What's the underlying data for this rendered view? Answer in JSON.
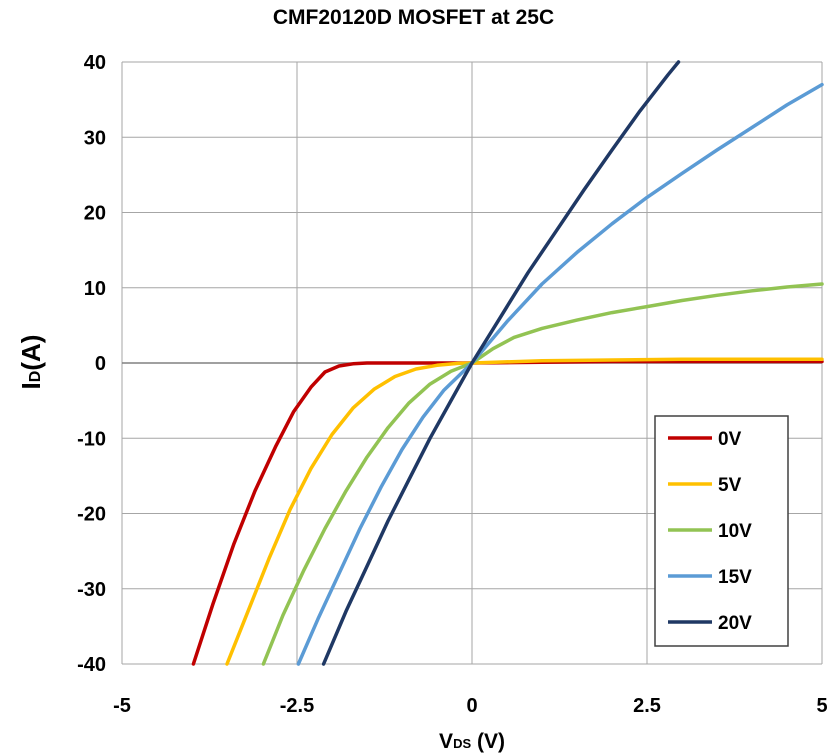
{
  "chart_data": {
    "type": "line",
    "title": "CMF20120D MOSFET at 25C",
    "xlabel": {
      "main": "V",
      "sub": "DS",
      "unit": " (V)"
    },
    "ylabel": {
      "main": "I",
      "sub": "D",
      "unit": "(A)"
    },
    "xlim": [
      -5,
      5
    ],
    "ylim": [
      -40,
      40
    ],
    "xticks": [
      -5,
      -2.5,
      0,
      2.5,
      5
    ],
    "xtick_labels": [
      "-5",
      "-2.5",
      "0",
      "2.5",
      "5"
    ],
    "yticks": [
      40,
      30,
      20,
      10,
      0,
      -10,
      -20,
      -30,
      -40
    ],
    "ytick_labels": [
      "40",
      "30",
      "20",
      "10",
      "0",
      "-10",
      "-20",
      "-30",
      "-40"
    ],
    "grid": true,
    "legend_position": "bottom-right",
    "series": [
      {
        "name": "0V",
        "color": "#c00000",
        "x": [
          -3.98,
          -3.7,
          -3.4,
          -3.1,
          -2.8,
          -2.55,
          -2.3,
          -2.1,
          -1.9,
          -1.7,
          -1.5,
          -1.0,
          -0.5,
          0,
          1,
          2,
          3,
          4,
          5
        ],
        "y": [
          -40,
          -32,
          -24,
          -17,
          -11,
          -6.5,
          -3.2,
          -1.2,
          -0.4,
          -0.1,
          0,
          0,
          0,
          0,
          0.1,
          0.2,
          0.2,
          0.2,
          0.2
        ]
      },
      {
        "name": "5V",
        "color": "#ffc000",
        "x": [
          -3.5,
          -3.2,
          -2.9,
          -2.6,
          -2.3,
          -2.0,
          -1.7,
          -1.4,
          -1.1,
          -0.8,
          -0.5,
          -0.2,
          0,
          1,
          2,
          3,
          4,
          5
        ],
        "y": [
          -40,
          -33,
          -26,
          -19.5,
          -14,
          -9.5,
          -6,
          -3.5,
          -1.8,
          -0.8,
          -0.3,
          -0.05,
          0,
          0.3,
          0.4,
          0.5,
          0.5,
          0.5
        ]
      },
      {
        "name": "10V",
        "color": "#92c353",
        "x": [
          -2.98,
          -2.7,
          -2.4,
          -2.1,
          -1.8,
          -1.5,
          -1.2,
          -0.9,
          -0.6,
          -0.3,
          0,
          0.3,
          0.6,
          1.0,
          1.5,
          2.0,
          2.5,
          3.0,
          3.5,
          4.0,
          4.5,
          5.0
        ],
        "y": [
          -40,
          -33.5,
          -27.5,
          -22,
          -17,
          -12.5,
          -8.6,
          -5.3,
          -2.8,
          -1.1,
          0,
          1.9,
          3.4,
          4.6,
          5.7,
          6.7,
          7.5,
          8.3,
          9.0,
          9.6,
          10.1,
          10.5
        ]
      },
      {
        "name": "15V",
        "color": "#5b9bd5",
        "x": [
          -2.48,
          -2.2,
          -1.9,
          -1.6,
          -1.3,
          -1.0,
          -0.7,
          -0.4,
          0,
          0.5,
          1.0,
          1.5,
          2.0,
          2.5,
          3.0,
          3.5,
          4.0,
          4.5,
          5.0
        ],
        "y": [
          -40,
          -34,
          -28,
          -22,
          -16.5,
          -11.5,
          -7.2,
          -3.6,
          0,
          5.5,
          10.5,
          14.7,
          18.5,
          22.0,
          25.2,
          28.3,
          31.3,
          34.3,
          37.0
        ]
      },
      {
        "name": "20V",
        "color": "#1f3864",
        "x": [
          -2.12,
          -1.8,
          -1.5,
          -1.2,
          -0.9,
          -0.6,
          -0.3,
          0,
          0.4,
          0.8,
          1.2,
          1.6,
          2.0,
          2.4,
          2.8,
          2.95
        ],
        "y": [
          -40,
          -33,
          -27,
          -21,
          -15.5,
          -10,
          -5,
          0,
          6,
          12,
          17.5,
          23,
          28.3,
          33.5,
          38.3,
          40
        ]
      }
    ]
  }
}
